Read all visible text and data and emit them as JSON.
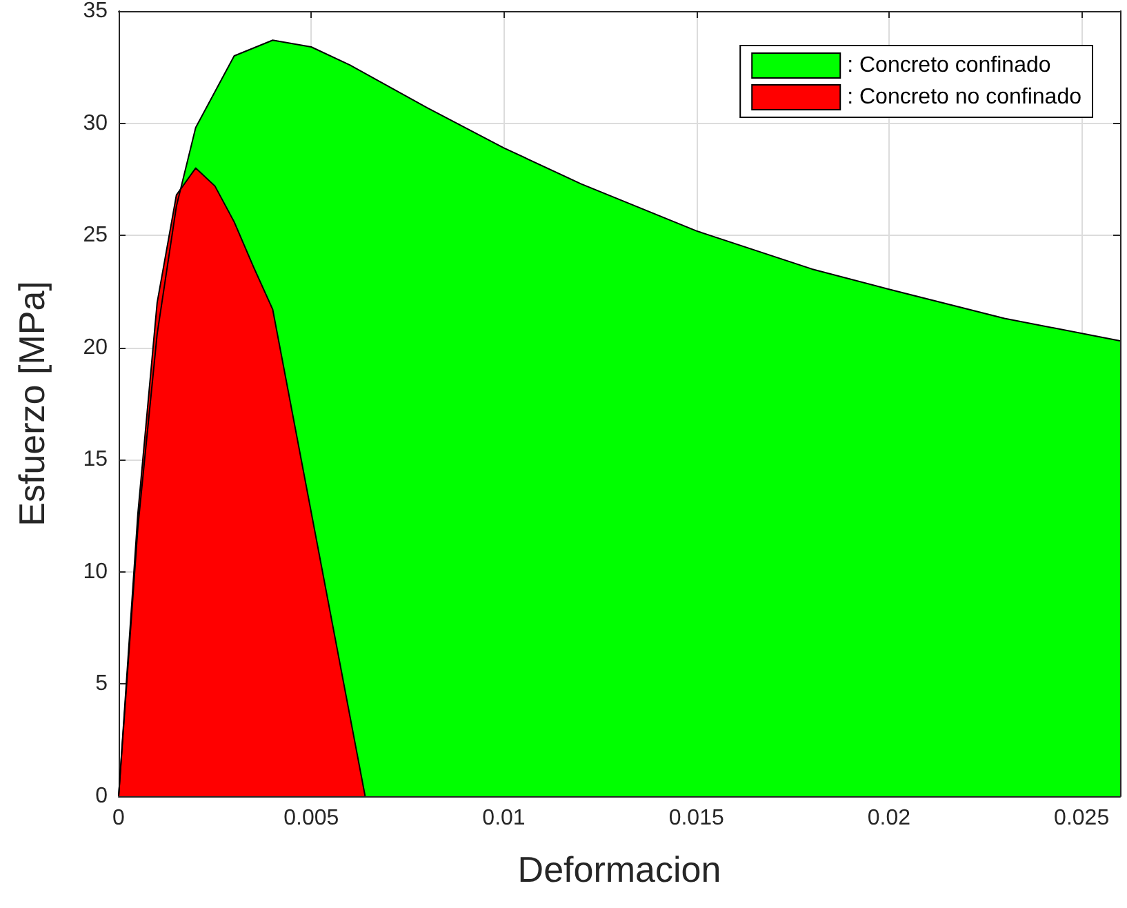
{
  "chart_data": {
    "type": "area",
    "xlabel": "Deformacion",
    "ylabel": "Esfuerzo [MPa]",
    "xlim": [
      0,
      0.026
    ],
    "xticks": [
      0,
      0.005,
      0.01,
      0.015,
      0.02,
      0.025
    ],
    "ylim": [
      0,
      35
    ],
    "yticks": [
      0,
      5,
      10,
      15,
      20,
      25,
      30,
      35
    ],
    "grid": true,
    "legend": "top right",
    "marker": "none",
    "line_style": "solid",
    "series": [
      {
        "name": ": Concreto confinado",
        "color": "#00ff00",
        "x": [
          0,
          0.0005,
          0.001,
          0.0015,
          0.002,
          0.003,
          0.004,
          0.005,
          0.006,
          0.008,
          0.01,
          0.012,
          0.015,
          0.018,
          0.02,
          0.023,
          0.026
        ],
        "values": [
          0,
          12.0,
          20.6,
          26.3,
          29.8,
          33.0,
          33.7,
          33.4,
          32.6,
          30.7,
          28.9,
          27.3,
          25.2,
          23.5,
          22.6,
          21.3,
          20.3
        ]
      },
      {
        "name": ": Concreto no confinado",
        "color": "#ff0000",
        "x": [
          0,
          0.0005,
          0.001,
          0.0015,
          0.002,
          0.0025,
          0.003,
          0.0035,
          0.004,
          0.0064
        ],
        "values": [
          0,
          12.6,
          22.0,
          26.8,
          28.0,
          27.2,
          25.6,
          23.6,
          21.7,
          0
        ]
      }
    ]
  }
}
